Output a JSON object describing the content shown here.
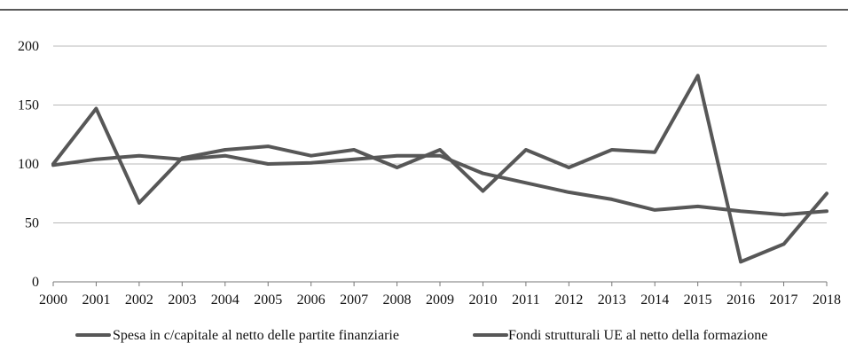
{
  "chart_data": {
    "type": "line",
    "title": "",
    "xlabel": "",
    "ylabel": "",
    "ylim": [
      0,
      200
    ],
    "yticks": [
      "0",
      "50",
      "100",
      "150",
      "200"
    ],
    "grid": true,
    "legend_position": "bottom",
    "categories": [
      "2000",
      "2001",
      "2002",
      "2003",
      "2004",
      "2005",
      "2006",
      "2007",
      "2008",
      "2009",
      "2010",
      "2011",
      "2012",
      "2013",
      "2014",
      "2015",
      "2016",
      "2017",
      "2018"
    ],
    "series": [
      {
        "name": "Spesa in c/capitale al netto delle partite finanziarie",
        "color": "#575757",
        "values": [
          100,
          147,
          67,
          105,
          112,
          115,
          107,
          112,
          97,
          112,
          77,
          112,
          97,
          112,
          110,
          175,
          17,
          32,
          75
        ]
      },
      {
        "name": "Fondi strutturali UE al netto della formazione",
        "color": "#575757",
        "values": [
          99,
          104,
          107,
          104,
          107,
          100,
          101,
          104,
          107,
          107,
          92,
          84,
          76,
          70,
          61,
          64,
          60,
          57,
          60
        ]
      }
    ]
  }
}
